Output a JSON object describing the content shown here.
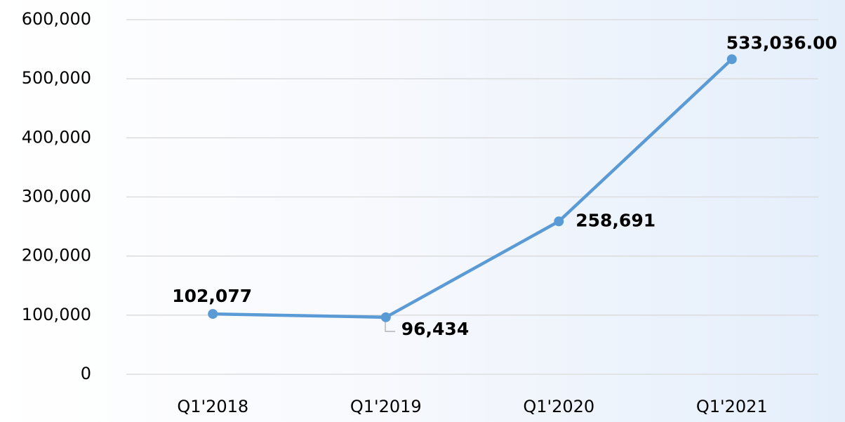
{
  "chart_data": {
    "type": "line",
    "categories": [
      "Q1'2018",
      "Q1'2019",
      "Q1'2020",
      "Q1'2021"
    ],
    "series": [
      {
        "name": null,
        "color": "#5b9bd5",
        "values": [
          102077,
          96434,
          258691,
          533036
        ],
        "value_labels": [
          "102,077",
          "96,434",
          "258,691",
          "533,036.00"
        ]
      }
    ],
    "ylim": [
      0,
      600000
    ],
    "yticks": [
      {
        "value": 0,
        "label": "0"
      },
      {
        "value": 100000,
        "label": "100,000"
      },
      {
        "value": 200000,
        "label": "200,000"
      },
      {
        "value": 300000,
        "label": "300,000"
      },
      {
        "value": 400000,
        "label": "400,000"
      },
      {
        "value": 500000,
        "label": "500,000"
      },
      {
        "value": 600000,
        "label": "600,000"
      }
    ],
    "grid": true
  }
}
